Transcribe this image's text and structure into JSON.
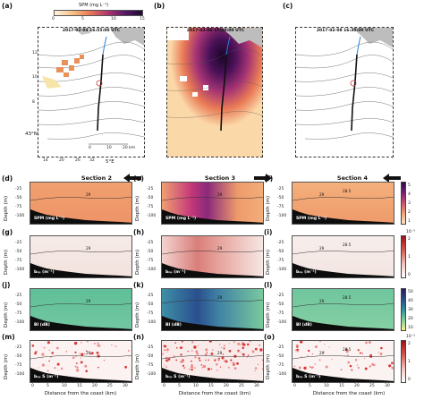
{
  "colorbar_top": {
    "label": "SPM (mg L⁻¹)",
    "ticks": [
      "0",
      "5",
      "10",
      "15"
    ]
  },
  "maps": [
    {
      "label": "(a)",
      "time": "2017-02-04 16:55:00 UTC"
    },
    {
      "label": "(b)",
      "time": "2017-02-06 15:00:00 UTC"
    },
    {
      "label": "(c)",
      "time": "2017-02-08 16:30:00 UTC"
    }
  ],
  "map_axes": {
    "lat_tick": "43°N",
    "lon_tick": "5°E",
    "y_ticks": [
      "12",
      "10",
      "8"
    ],
    "x_ticks": [
      "4",
      "4",
      "36",
      "48",
      "12",
      "14",
      "20",
      "26",
      "32"
    ],
    "scale_labels": [
      "0",
      "10",
      "20 km"
    ]
  },
  "sections": {
    "s2": "Section 2",
    "s3": "Section 3",
    "s4": "Section 4"
  },
  "rows": [
    {
      "labels": [
        "(d)",
        "(e)",
        "(f)"
      ],
      "param": "SPM (mg L⁻¹)",
      "cb_ticks": [
        "5",
        "4",
        "3",
        "2",
        "1"
      ],
      "cb_exp": ""
    },
    {
      "labels": [
        "(g)",
        "(h)",
        "(i)"
      ],
      "param": "bₙₚ (m⁻¹)",
      "cb_ticks": [
        "2",
        "1",
        "0"
      ],
      "cb_exp": "10⁻³"
    },
    {
      "labels": [
        "(j)",
        "(k)",
        "(l)"
      ],
      "param": "BI (dB)",
      "cb_ticks": [
        "50",
        "40",
        "30",
        "20",
        "10"
      ],
      "cb_exp": ""
    },
    {
      "labels": [
        "(m)",
        "(n)",
        "(o)"
      ],
      "param": "bₙₚ S (m⁻¹)",
      "cb_ticks": [
        "2",
        "1",
        "0"
      ],
      "cb_exp": "10⁻³"
    }
  ],
  "depth_axis": {
    "label": "Depth (m)",
    "ticks": [
      "-25",
      "-50",
      "-75",
      "-100"
    ]
  },
  "dist_axis": {
    "label": "Distance from the coast (km)",
    "ticks": [
      "0",
      "5",
      "10",
      "15",
      "20",
      "25",
      "30"
    ]
  },
  "isopycnals": {
    "a": "29",
    "b": "28.5"
  }
}
